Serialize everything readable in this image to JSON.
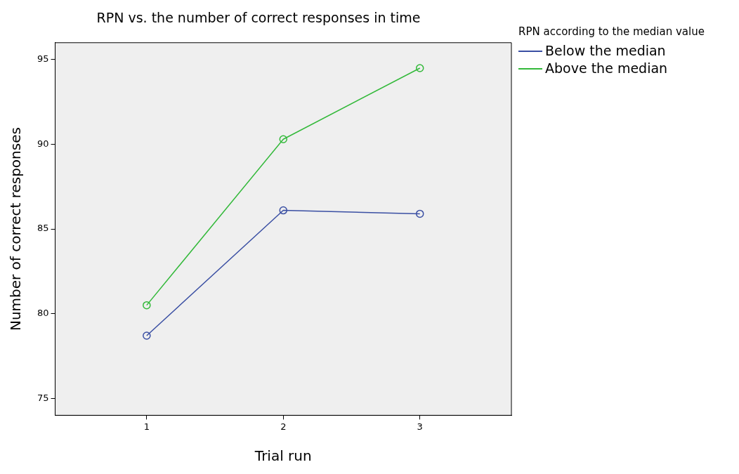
{
  "chart_data": {
    "type": "line",
    "title": "RPN vs. the number of correct responses in time",
    "xlabel": "Trial run",
    "ylabel": "Number of correct responses",
    "legend_title": "RPN according to the median value",
    "x": [
      1,
      2,
      3
    ],
    "xlim": [
      0.33,
      3.67
    ],
    "xticks": [
      1,
      2,
      3
    ],
    "ylim": [
      74,
      96
    ],
    "yticks": [
      75,
      80,
      85,
      90,
      95
    ],
    "series": [
      {
        "name": "Below the median",
        "color": "#3a4fa3",
        "values": [
          78.7,
          86.1,
          85.9
        ]
      },
      {
        "name": "Above the median",
        "color": "#33b93a",
        "values": [
          80.5,
          90.3,
          94.5
        ]
      }
    ],
    "marker": "circle",
    "grid": false,
    "legend": "top right",
    "line_style": "solid"
  }
}
